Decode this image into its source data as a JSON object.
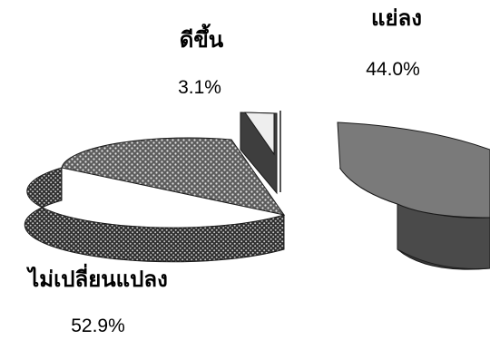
{
  "chart_data": {
    "type": "pie",
    "style": "3d-exploded",
    "slices": [
      {
        "label": "ไม่เปลี่ยนแปลง",
        "value": 52.9,
        "value_label": "52.9%",
        "fill": "dotted-pattern",
        "color": "#6f6f6f"
      },
      {
        "label": "ดีขึ้น",
        "value": 3.1,
        "value_label": "3.1%",
        "fill": "light-gray",
        "color": "#ececec"
      },
      {
        "label": "แย่ลง",
        "value": 44.0,
        "value_label": "44.0%",
        "fill": "solid-gray",
        "color": "#7a7a7a"
      }
    ]
  }
}
